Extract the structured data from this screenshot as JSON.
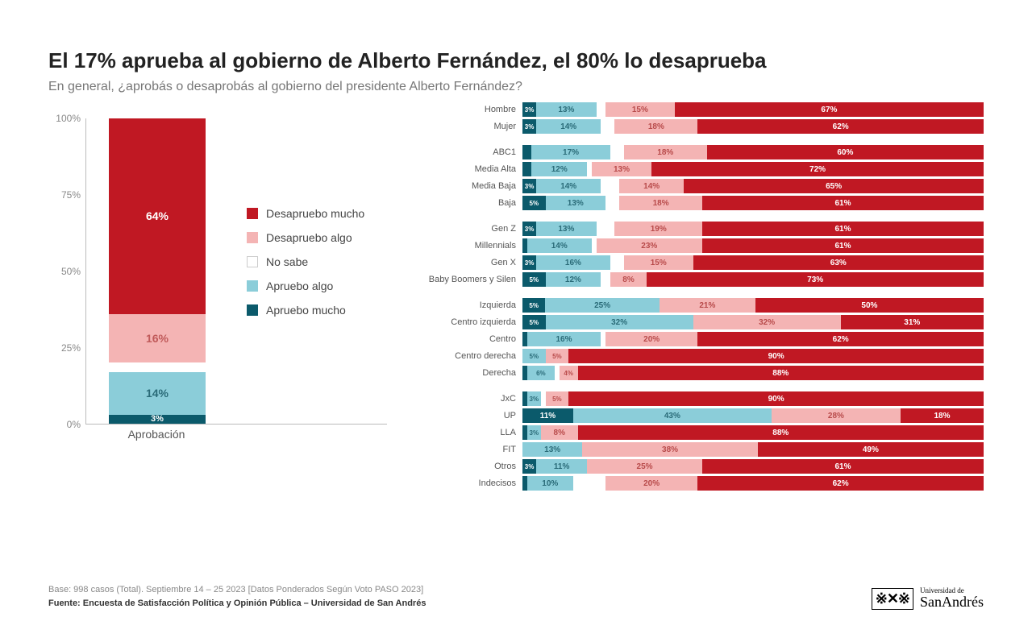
{
  "title": "El 17% aprueba al gobierno de Alberto Fernández, el 80% lo desaprueba",
  "subtitle": "En general, ¿aprobás o desaprobás al gobierno del presidente Alberto Fernández?",
  "colors": {
    "apruebo_mucho": "#0b5a6b",
    "apruebo_algo": "#8bcdd9",
    "no_sabe": "#ffffff",
    "desapruebo_algo": "#f4b4b4",
    "desapruebo_mucho": "#c01823",
    "grid": "#bbbbbb",
    "text": "#555555"
  },
  "categories": [
    {
      "key": "desapruebo_mucho",
      "label": "Desapruebo mucho"
    },
    {
      "key": "desapruebo_algo",
      "label": "Desapruebo algo"
    },
    {
      "key": "no_sabe",
      "label": "No sabe"
    },
    {
      "key": "apruebo_algo",
      "label": "Apruebo algo"
    },
    {
      "key": "apruebo_mucho",
      "label": "Apruebo mucho"
    }
  ],
  "main_chart": {
    "type": "stacked_bar_vertical",
    "xlabel": "Aprobación",
    "ylim": [
      0,
      100
    ],
    "ytick_step": 25,
    "yticks": [
      "0%",
      "25%",
      "50%",
      "75%",
      "100%"
    ],
    "segments": [
      {
        "key": "apruebo_mucho",
        "value": 3,
        "label": "3%",
        "color": "#0b5a6b"
      },
      {
        "key": "apruebo_algo",
        "value": 14,
        "label": "14%",
        "color": "#8bcdd9"
      },
      {
        "key": "no_sabe",
        "value": 3,
        "label": "",
        "color": "#ffffff"
      },
      {
        "key": "desapruebo_algo",
        "value": 16,
        "label": "16%",
        "color": "#f4b4b4"
      },
      {
        "key": "desapruebo_mucho",
        "value": 64,
        "label": "64%",
        "color": "#c01823"
      }
    ]
  },
  "breakdown": {
    "type": "stacked_bar_horizontal",
    "segment_order": [
      "apruebo_mucho",
      "apruebo_algo",
      "no_sabe",
      "desapruebo_algo",
      "desapruebo_mucho"
    ],
    "groups": [
      {
        "rows": [
          {
            "label": "Hombre",
            "values": {
              "apruebo_mucho": 3,
              "apruebo_algo": 13,
              "no_sabe": 2,
              "desapruebo_algo": 15,
              "desapruebo_mucho": 67
            }
          },
          {
            "label": "Mujer",
            "values": {
              "apruebo_mucho": 3,
              "apruebo_algo": 14,
              "no_sabe": 3,
              "desapruebo_algo": 18,
              "desapruebo_mucho": 62
            }
          }
        ]
      },
      {
        "rows": [
          {
            "label": "ABC1",
            "values": {
              "apruebo_mucho": 2,
              "apruebo_algo": 17,
              "no_sabe": 3,
              "desapruebo_algo": 18,
              "desapruebo_mucho": 60
            }
          },
          {
            "label": "Media Alta",
            "values": {
              "apruebo_mucho": 2,
              "apruebo_algo": 12,
              "no_sabe": 1,
              "desapruebo_algo": 13,
              "desapruebo_mucho": 72
            }
          },
          {
            "label": "Media Baja",
            "values": {
              "apruebo_mucho": 3,
              "apruebo_algo": 14,
              "no_sabe": 4,
              "desapruebo_algo": 14,
              "desapruebo_mucho": 65
            }
          },
          {
            "label": "Baja",
            "values": {
              "apruebo_mucho": 5,
              "apruebo_algo": 13,
              "no_sabe": 3,
              "desapruebo_algo": 18,
              "desapruebo_mucho": 61
            }
          }
        ]
      },
      {
        "rows": [
          {
            "label": "Gen Z",
            "values": {
              "apruebo_mucho": 3,
              "apruebo_algo": 13,
              "no_sabe": 4,
              "desapruebo_algo": 19,
              "desapruebo_mucho": 61
            }
          },
          {
            "label": "Millennials",
            "values": {
              "apruebo_mucho": 1,
              "apruebo_algo": 14,
              "no_sabe": 1,
              "desapruebo_algo": 23,
              "desapruebo_mucho": 61
            }
          },
          {
            "label": "Gen X",
            "values": {
              "apruebo_mucho": 3,
              "apruebo_algo": 16,
              "no_sabe": 3,
              "desapruebo_algo": 15,
              "desapruebo_mucho": 63
            }
          },
          {
            "label": "Baby Boomers y Silen",
            "values": {
              "apruebo_mucho": 5,
              "apruebo_algo": 12,
              "no_sabe": 2,
              "desapruebo_algo": 8,
              "desapruebo_mucho": 73
            }
          }
        ]
      },
      {
        "rows": [
          {
            "label": "Izquierda",
            "values": {
              "apruebo_mucho": 5,
              "apruebo_algo": 25,
              "no_sabe": 0,
              "desapruebo_algo": 21,
              "desapruebo_mucho": 50
            }
          },
          {
            "label": "Centro izquierda",
            "values": {
              "apruebo_mucho": 5,
              "apruebo_algo": 32,
              "no_sabe": 0,
              "desapruebo_algo": 32,
              "desapruebo_mucho": 31
            }
          },
          {
            "label": "Centro",
            "values": {
              "apruebo_mucho": 1,
              "apruebo_algo": 16,
              "no_sabe": 1,
              "desapruebo_algo": 20,
              "desapruebo_mucho": 62
            }
          },
          {
            "label": "Centro derecha",
            "values": {
              "apruebo_mucho": 0,
              "apruebo_algo": 5,
              "no_sabe": 0,
              "desapruebo_algo": 5,
              "desapruebo_mucho": 90
            }
          },
          {
            "label": "Derecha",
            "values": {
              "apruebo_mucho": 1,
              "apruebo_algo": 6,
              "no_sabe": 1,
              "desapruebo_algo": 4,
              "desapruebo_mucho": 88
            }
          }
        ]
      },
      {
        "rows": [
          {
            "label": "JxC",
            "values": {
              "apruebo_mucho": 1,
              "apruebo_algo": 3,
              "no_sabe": 1,
              "desapruebo_algo": 5,
              "desapruebo_mucho": 90
            }
          },
          {
            "label": "UP",
            "values": {
              "apruebo_mucho": 11,
              "apruebo_algo": 43,
              "no_sabe": 0,
              "desapruebo_algo": 28,
              "desapruebo_mucho": 18
            }
          },
          {
            "label": "LLA",
            "values": {
              "apruebo_mucho": 1,
              "apruebo_algo": 3,
              "no_sabe": 0,
              "desapruebo_algo": 8,
              "desapruebo_mucho": 88
            }
          },
          {
            "label": "FIT",
            "values": {
              "apruebo_mucho": 0,
              "apruebo_algo": 13,
              "no_sabe": 0,
              "desapruebo_algo": 38,
              "desapruebo_mucho": 49
            }
          },
          {
            "label": "Otros",
            "values": {
              "apruebo_mucho": 3,
              "apruebo_algo": 11,
              "no_sabe": 0,
              "desapruebo_algo": 25,
              "desapruebo_mucho": 61
            }
          },
          {
            "label": "Indecisos",
            "values": {
              "apruebo_mucho": 1,
              "apruebo_algo": 10,
              "no_sabe": 7,
              "desapruebo_algo": 20,
              "desapruebo_mucho": 62
            }
          }
        ]
      }
    ]
  },
  "footer": {
    "base": "Base: 998 casos (Total). Septiembre 14 – 25 2023 [Datos Ponderados Según Voto PASO 2023]",
    "source": "Fuente: Encuesta de Satisfacción Política y Opinión Pública – Universidad de San Andrés"
  },
  "logo": {
    "top": "Universidad de",
    "main": "SanAndrés"
  }
}
